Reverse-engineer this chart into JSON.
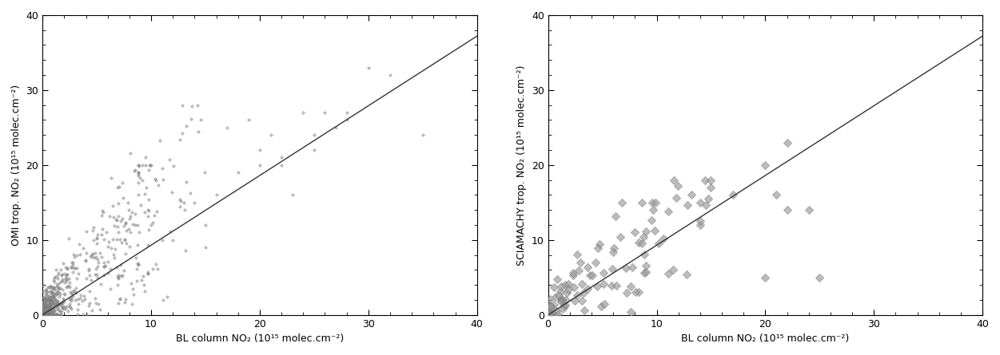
{
  "panel1": {
    "ylabel": "OMI trop. NO₂ (10¹⁵ molec.cm⁻²)",
    "xlabel": "BL column NO₂ (10¹⁵ molec.cm⁻²)",
    "xlim": [
      0,
      40
    ],
    "ylim": [
      0,
      40
    ],
    "xticks": [
      0,
      10,
      20,
      30,
      40
    ],
    "yticks": [
      0,
      10,
      20,
      30,
      40
    ],
    "line_slope": 0.93,
    "line_intercept": 0.0,
    "marker": "D",
    "marker_size_s": 4,
    "marker_color": "#999999",
    "marker_alpha": 0.55,
    "line_color": "#333333"
  },
  "panel2": {
    "ylabel": "SCIAMACHY trop. NO₂ (10¹⁵ molec.cm⁻²)",
    "xlabel": "BL column NO₂ (10¹⁵ molec.cm⁻²)",
    "xlim": [
      0,
      40
    ],
    "ylim": [
      0,
      40
    ],
    "xticks": [
      0,
      10,
      20,
      30,
      40
    ],
    "yticks": [
      0,
      10,
      20,
      30,
      40
    ],
    "line_slope": 0.93,
    "line_intercept": 0.0,
    "marker": "D",
    "marker_size_s": 28,
    "marker_color": "#999999",
    "marker_alpha": 0.65,
    "line_color": "#333333"
  },
  "bg_color": "#ffffff",
  "spine_color": "#000000",
  "tick_color": "#000000",
  "figsize": [
    12.51,
    4.45
  ],
  "dpi": 100
}
